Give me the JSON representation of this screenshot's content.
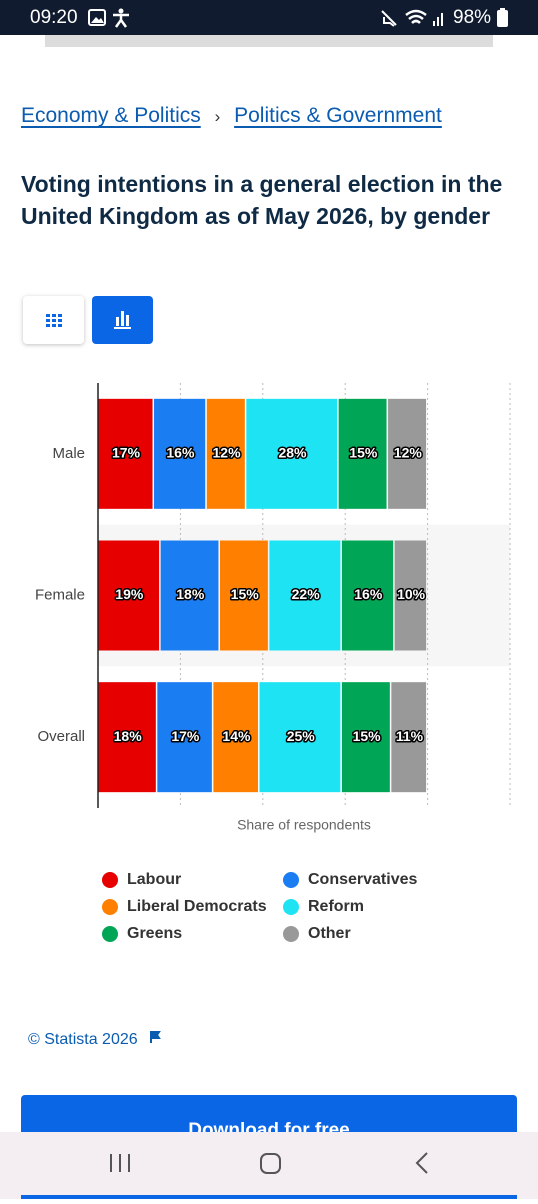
{
  "status_bar": {
    "time": "09:20",
    "battery": "98%"
  },
  "breadcrumb": {
    "items": [
      "Economy & Politics",
      "Politics & Government"
    ],
    "separator": "›"
  },
  "chart_data": {
    "type": "stacked-bar-horizontal",
    "title": "Voting intentions in a general election in the United Kingdom as of May 2026, by gender",
    "categories": [
      "Male",
      "Female",
      "Overall"
    ],
    "x_label": "Share of respondents",
    "xlim": [
      0,
      125
    ],
    "xticks": [
      0,
      25,
      50,
      75,
      100,
      125
    ],
    "grid": true,
    "legend": "bottom",
    "series": [
      {
        "name": "Labour",
        "color": "#e60000",
        "values": [
          17,
          19,
          18
        ],
        "value_labels": [
          "17%",
          "19%",
          "18%"
        ]
      },
      {
        "name": "Conservatives",
        "color": "#1a7df2",
        "values": [
          16,
          18,
          17
        ],
        "value_labels": [
          "16%",
          "18%",
          "17%"
        ]
      },
      {
        "name": "Liberal Democrats",
        "color": "#ff8000",
        "values": [
          12,
          15,
          14
        ],
        "value_labels": [
          "12%",
          "15%",
          "14%"
        ]
      },
      {
        "name": "Reform",
        "color": "#1ee3f2",
        "values": [
          28,
          22,
          25
        ],
        "value_labels": [
          "28%",
          "22%",
          "25%"
        ]
      },
      {
        "name": "Greens",
        "color": "#00a655",
        "values": [
          15,
          16,
          15
        ],
        "value_labels": [
          "15%",
          "16%",
          "15%"
        ]
      },
      {
        "name": "Other",
        "color": "#999999",
        "values": [
          12,
          10,
          11
        ],
        "value_labels": [
          "12%",
          "10%",
          "11%"
        ]
      }
    ]
  },
  "footer": {
    "copyright": "© Statista 2026",
    "download_button": "Download for free"
  }
}
